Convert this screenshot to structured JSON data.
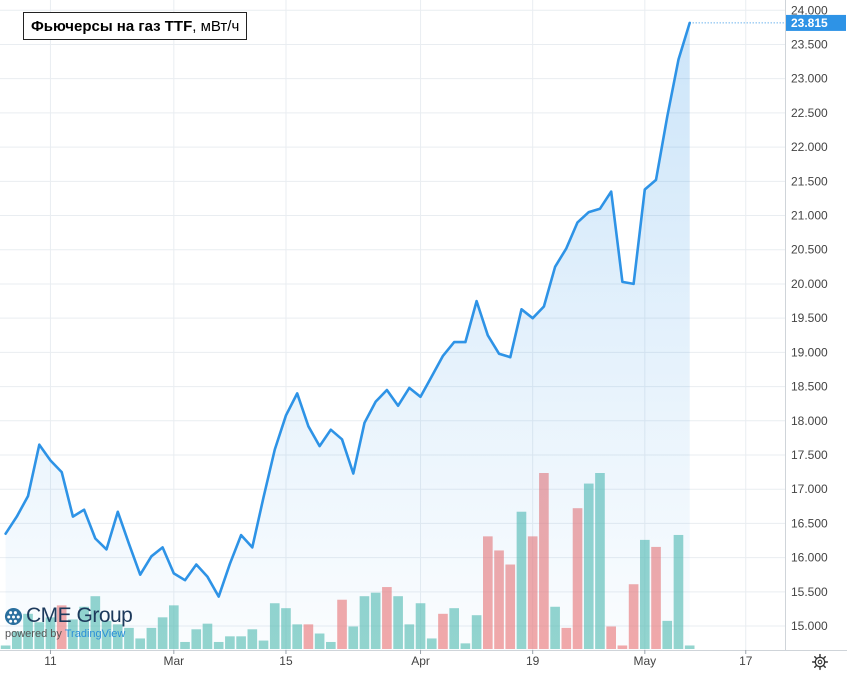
{
  "title": {
    "main": "Фьючерсы на газ TTF",
    "unit": ", мВт/ч"
  },
  "logo": {
    "brand": "CME Group",
    "powered_prefix": "powered by ",
    "powered_brand": "TradingView"
  },
  "icons": {
    "settings": "gear-icon",
    "logo": "globe-icon"
  },
  "colors": {
    "line": "#2e93e6",
    "area": "#2e93e6",
    "vol_up": "#5bbfb3",
    "vol_down": "#ee7b7b",
    "grid": "#e9edf1",
    "axis_text": "#444444",
    "last_label_bg": "#2e93e6"
  },
  "chart_data": {
    "type": "area",
    "title": "Фьючерсы на газ TTF, мВт/ч",
    "last_value_label": "23.815",
    "ylim": [
      14.65,
      24.15
    ],
    "yticks": [
      15.0,
      15.5,
      16.0,
      16.5,
      17.0,
      17.5,
      18.0,
      18.5,
      19.0,
      19.5,
      20.0,
      20.5,
      21.0,
      21.5,
      22.0,
      22.5,
      23.0,
      23.5,
      24.0
    ],
    "ytick_labels": [
      "15.000",
      "15.500",
      "16.000",
      "16.500",
      "17.000",
      "17.500",
      "18.000",
      "18.500",
      "19.000",
      "19.500",
      "20.000",
      "20.500",
      "21.000",
      "21.500",
      "22.000",
      "22.500",
      "23.000",
      "23.500",
      "24.000"
    ],
    "x_index_range": [
      -0.5,
      69.5
    ],
    "xtick_labels": [
      {
        "index": 4,
        "label": "11"
      },
      {
        "index": 15,
        "label": "Mar"
      },
      {
        "index": 25,
        "label": "15"
      },
      {
        "index": 37,
        "label": "Apr"
      },
      {
        "index": 47,
        "label": "19"
      },
      {
        "index": 57,
        "label": "May"
      },
      {
        "index": 66,
        "label": "17"
      }
    ],
    "grid": true,
    "series": [
      {
        "values": [
          16.35,
          16.6,
          16.9,
          17.65,
          17.42,
          17.25,
          16.6,
          16.7,
          16.28,
          16.12,
          16.67,
          16.2,
          15.75,
          16.02,
          16.15,
          15.77,
          15.67,
          15.9,
          15.72,
          15.43,
          15.91,
          16.33,
          16.15,
          16.88,
          17.58,
          18.08,
          18.4,
          17.92,
          17.63,
          17.87,
          17.73,
          17.23,
          17.97,
          18.28,
          18.45,
          18.22,
          18.48,
          18.35,
          18.65,
          18.95,
          19.15,
          19.15,
          19.75,
          19.25,
          18.98,
          18.93,
          19.63,
          19.5,
          19.67,
          20.25,
          20.52,
          20.9,
          21.05,
          21.1,
          21.35,
          20.03,
          20.0,
          21.38,
          21.52,
          22.45,
          23.28,
          23.815
        ]
      }
    ],
    "volume": [
      {
        "v": 5,
        "up": true
      },
      {
        "v": 25,
        "up": true
      },
      {
        "v": 50,
        "up": true
      },
      {
        "v": 38,
        "up": true
      },
      {
        "v": 45,
        "up": true
      },
      {
        "v": 62,
        "up": false
      },
      {
        "v": 42,
        "up": true
      },
      {
        "v": 60,
        "up": true
      },
      {
        "v": 75,
        "up": true
      },
      {
        "v": 40,
        "up": true
      },
      {
        "v": 35,
        "up": true
      },
      {
        "v": 30,
        "up": true
      },
      {
        "v": 15,
        "up": true
      },
      {
        "v": 30,
        "up": true
      },
      {
        "v": 45,
        "up": true
      },
      {
        "v": 62,
        "up": true
      },
      {
        "v": 10,
        "up": true
      },
      {
        "v": 28,
        "up": true
      },
      {
        "v": 36,
        "up": true
      },
      {
        "v": 10,
        "up": true
      },
      {
        "v": 18,
        "up": true
      },
      {
        "v": 18,
        "up": true
      },
      {
        "v": 28,
        "up": true
      },
      {
        "v": 12,
        "up": true
      },
      {
        "v": 65,
        "up": true
      },
      {
        "v": 58,
        "up": true
      },
      {
        "v": 35,
        "up": true
      },
      {
        "v": 35,
        "up": false
      },
      {
        "v": 22,
        "up": true
      },
      {
        "v": 10,
        "up": true
      },
      {
        "v": 70,
        "up": false
      },
      {
        "v": 32,
        "up": true
      },
      {
        "v": 75,
        "up": true
      },
      {
        "v": 80,
        "up": true
      },
      {
        "v": 88,
        "up": false
      },
      {
        "v": 75,
        "up": true
      },
      {
        "v": 35,
        "up": true
      },
      {
        "v": 65,
        "up": true
      },
      {
        "v": 15,
        "up": true
      },
      {
        "v": 50,
        "up": false
      },
      {
        "v": 58,
        "up": true
      },
      {
        "v": 8,
        "up": true
      },
      {
        "v": 48,
        "up": true
      },
      {
        "v": 160,
        "up": false
      },
      {
        "v": 140,
        "up": false
      },
      {
        "v": 120,
        "up": false
      },
      {
        "v": 195,
        "up": true
      },
      {
        "v": 160,
        "up": false
      },
      {
        "v": 250,
        "up": false
      },
      {
        "v": 60,
        "up": true
      },
      {
        "v": 30,
        "up": false
      },
      {
        "v": 200,
        "up": false
      },
      {
        "v": 235,
        "up": true
      },
      {
        "v": 250,
        "up": true
      },
      {
        "v": 32,
        "up": false
      },
      {
        "v": 5,
        "up": false
      },
      {
        "v": 92,
        "up": false
      },
      {
        "v": 155,
        "up": true
      },
      {
        "v": 145,
        "up": false
      },
      {
        "v": 40,
        "up": true
      },
      {
        "v": 162,
        "up": true
      },
      {
        "v": 5,
        "up": true
      }
    ]
  }
}
